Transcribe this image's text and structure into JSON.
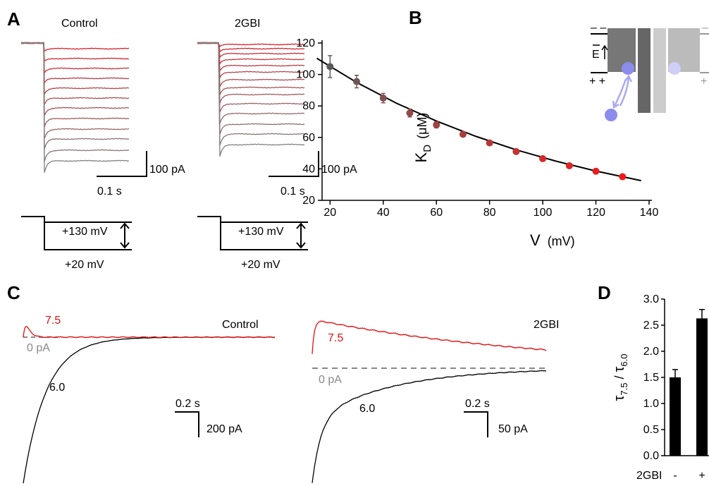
{
  "panels": {
    "A": {
      "letter": "A",
      "left_title": "Control",
      "right_title": "2GBI",
      "left_scale_y": "100 pA",
      "left_scale_x": "0.1 s",
      "right_scale_y": "100 pA",
      "right_scale_x": "0.1 s",
      "left_step_high": "+130 mV",
      "left_step_low": "+20 mV",
      "right_step_high": "+130 mV",
      "right_step_low": "+20 mV"
    },
    "B": {
      "letter": "B",
      "inset": {
        "top_signs": "– –",
        "bottom_signs": "+ +",
        "field": "E",
        "right_top_sign": "–",
        "right_bottom_sign": "+"
      }
    },
    "C": {
      "letter": "C",
      "left_label_red": "7.5",
      "left_zero": "0 pA",
      "left_label_black": "6.0",
      "left_title": "Control",
      "left_scale_x": "0.2 s",
      "left_scale_y": "200 pA",
      "right_label_red": "7.5",
      "right_zero": "0 pA",
      "right_label_black": "6.0",
      "right_title": "2GBI",
      "right_scale_x": "0.2 s",
      "right_scale_y": "50 pA"
    },
    "D": {
      "letter": "D"
    }
  },
  "chart_data": [
    {
      "type": "scatter",
      "x": [
        20,
        30,
        40,
        50,
        60,
        70,
        80,
        90,
        100,
        110,
        120,
        130
      ],
      "values": [
        105,
        95.5,
        85,
        75.5,
        68,
        62,
        56.5,
        51,
        46.5,
        42,
        38.5,
        35
      ],
      "errors": [
        7,
        4,
        3,
        2.5,
        2,
        1.5,
        1,
        1,
        1,
        1,
        1,
        1
      ],
      "colors": [
        "#5a5a5a",
        "#6e5656",
        "#825050",
        "#8e4a4a",
        "#9a4444",
        "#a83e3e",
        "#b63838",
        "#c43232",
        "#d22a2a",
        "#de2424",
        "#e81e1e",
        "#f01818"
      ],
      "fit": {
        "x": [
          15,
          30,
          45,
          60,
          75,
          90,
          105,
          120,
          137
        ],
        "values": [
          110.3,
          95.0,
          81.7,
          70.4,
          60.6,
          52.1,
          44.9,
          38.6,
          32.5
        ],
        "color": "#000000"
      },
      "xlim": [
        17,
        140
      ],
      "ylim": [
        20,
        120
      ],
      "xticks": [
        20,
        40,
        60,
        80,
        100,
        120,
        140
      ],
      "yticks": [
        20,
        40,
        60,
        80,
        100,
        120
      ],
      "xlabel": {
        "var": "V",
        "unit": "(mV)"
      },
      "ylabel": {
        "var": "K",
        "sub": "D",
        "unit": "(μM)"
      }
    },
    {
      "type": "bar",
      "categories": [
        "-",
        "+"
      ],
      "values": [
        1.5,
        2.63
      ],
      "errors": [
        0.15,
        0.17
      ],
      "color": "#000000",
      "ylim": [
        0,
        3.0
      ],
      "yticks": [
        {
          "value": 0,
          "label": "0.0"
        },
        {
          "value": 0.5,
          "label": "0.5"
        },
        {
          "value": 1,
          "label": "1.0"
        },
        {
          "value": 1.5,
          "label": "1.5"
        },
        {
          "value": 2,
          "label": "2.0"
        },
        {
          "value": 2.5,
          "label": "2.5"
        },
        {
          "value": 3,
          "label": "3.0"
        }
      ],
      "xlabel": "2GBI",
      "ylabel": {
        "num": "τ",
        "num_sub": "7.5",
        "sep": " / ",
        "den": "τ",
        "den_sub": "6.0"
      }
    }
  ]
}
